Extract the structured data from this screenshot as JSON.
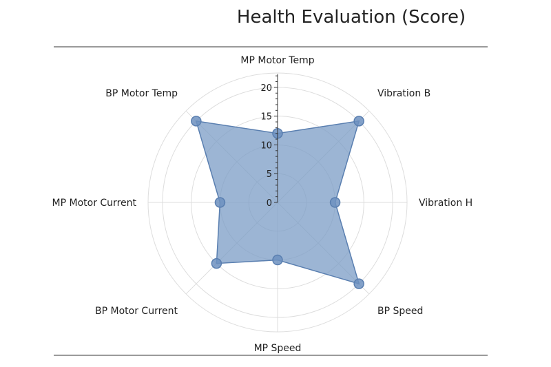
{
  "chart_data": {
    "type": "radar",
    "title": "Health Evaluation (Score)",
    "axes": [
      "MP Motor Temp",
      "Vibration B",
      "Vibration H",
      "BP Speed",
      "MP Speed",
      "BP Motor Current",
      "MP Motor Current",
      "BP Motor Temp"
    ],
    "values": [
      12,
      20,
      10,
      20,
      10,
      15,
      10,
      20
    ],
    "rmax": 22.5,
    "ticks": [
      0,
      5,
      10,
      15,
      20
    ],
    "tick_labels": [
      "0",
      "5",
      "10",
      "15",
      "20"
    ],
    "grid": true,
    "colors": {
      "fill": "#7b9cc6",
      "stroke": "#5a7fb0",
      "marker": "#6d91c0",
      "grid": "#dddddd",
      "axis": "#333333"
    }
  }
}
